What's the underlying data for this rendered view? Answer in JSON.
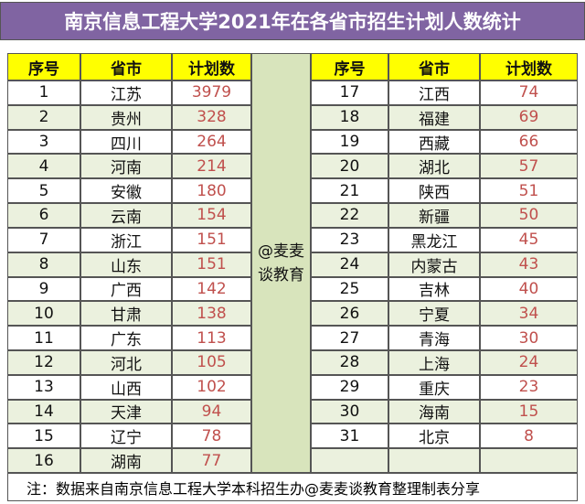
{
  "header": {
    "title": "南京信息工程大学2021年在各省市招生计划人数统计"
  },
  "table": {
    "columns": [
      "序号",
      "省市",
      "计划数"
    ],
    "middle": "@麦麦谈教育",
    "left_rows": [
      [
        1,
        "江苏",
        3979
      ],
      [
        2,
        "贵州",
        328
      ],
      [
        3,
        "四川",
        264
      ],
      [
        4,
        "河南",
        214
      ],
      [
        5,
        "安徽",
        180
      ],
      [
        6,
        "云南",
        154
      ],
      [
        7,
        "浙江",
        151
      ],
      [
        8,
        "山东",
        151
      ],
      [
        9,
        "广西",
        142
      ],
      [
        10,
        "甘肃",
        138
      ],
      [
        11,
        "广东",
        113
      ],
      [
        12,
        "河北",
        105
      ],
      [
        13,
        "山西",
        102
      ],
      [
        14,
        "天津",
        94
      ],
      [
        15,
        "辽宁",
        78
      ],
      [
        16,
        "湖南",
        77
      ]
    ],
    "right_rows": [
      [
        17,
        "江西",
        74
      ],
      [
        18,
        "福建",
        69
      ],
      [
        19,
        "西藏",
        66
      ],
      [
        20,
        "湖北",
        57
      ],
      [
        21,
        "陕西",
        51
      ],
      [
        22,
        "新疆",
        50
      ],
      [
        23,
        "黑龙江",
        45
      ],
      [
        24,
        "内蒙古",
        43
      ],
      [
        25,
        "吉林",
        40
      ],
      [
        26,
        "宁夏",
        34
      ],
      [
        27,
        "青海",
        30
      ],
      [
        28,
        "上海",
        24
      ],
      [
        29,
        "重庆",
        23
      ],
      [
        30,
        "海南",
        15
      ],
      [
        31,
        "北京",
        8
      ]
    ]
  },
  "footer": {
    "note": "注：数据来自南京信息工程大学本科招生办@麦麦谈教育整理制表分享"
  }
}
